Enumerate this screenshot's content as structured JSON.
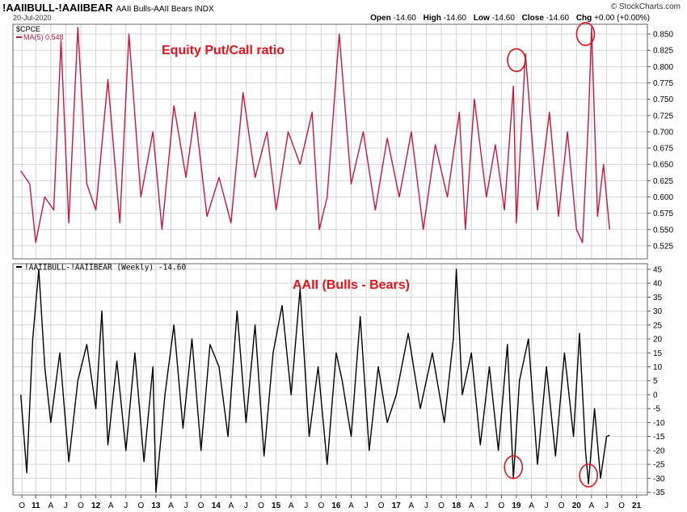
{
  "header": {
    "symbol": "!AAIIBULL-!AAIIBEAR",
    "name": "AAII Bulls-AAII Bears",
    "exchange": "INDX",
    "brand": "© StockCharts.com",
    "date": "20-Jul-2020",
    "quote": {
      "open_label": "Open",
      "open": "-14.60",
      "high_label": "High",
      "high": "-14.60",
      "low_label": "Low",
      "low": "-14.60",
      "close_label": "Close",
      "close": "-14.60",
      "chg_label": "Chg",
      "chg": "+0.00 (+0.00%)"
    }
  },
  "chart_data": [
    {
      "type": "line",
      "title": "Equity Put/Call ratio",
      "legend": {
        "symbol": "$CPCE",
        "ma": "MA(5) 0.548",
        "placement": "top-left"
      },
      "color": "#c8173f",
      "ylim": [
        0.505,
        0.865
      ],
      "yticks": [
        "0.850",
        "0.825",
        "0.800",
        "0.775",
        "0.750",
        "0.725",
        "0.700",
        "0.675",
        "0.650",
        "0.625",
        "0.600",
        "0.575",
        "0.550",
        "0.525"
      ],
      "x": [
        2010.75,
        2010.9,
        2011.0,
        2011.15,
        2011.3,
        2011.42,
        2011.55,
        2011.7,
        2011.85,
        2012.0,
        2012.2,
        2012.4,
        2012.55,
        2012.75,
        2012.95,
        2013.1,
        2013.3,
        2013.5,
        2013.65,
        2013.85,
        2014.05,
        2014.25,
        2014.45,
        2014.65,
        2014.85,
        2015.0,
        2015.2,
        2015.4,
        2015.6,
        2015.72,
        2015.85,
        2016.05,
        2016.25,
        2016.45,
        2016.65,
        2016.85,
        2017.05,
        2017.25,
        2017.45,
        2017.65,
        2017.85,
        2018.05,
        2018.15,
        2018.3,
        2018.5,
        2018.65,
        2018.8,
        2018.95,
        2019.0,
        2019.15,
        2019.35,
        2019.55,
        2019.7,
        2019.85,
        2020.0,
        2020.1,
        2020.2,
        2020.25,
        2020.35,
        2020.45,
        2020.55
      ],
      "values": [
        0.64,
        0.62,
        0.53,
        0.6,
        0.58,
        0.84,
        0.56,
        0.86,
        0.62,
        0.58,
        0.78,
        0.56,
        0.85,
        0.6,
        0.7,
        0.55,
        0.74,
        0.63,
        0.73,
        0.57,
        0.63,
        0.56,
        0.76,
        0.63,
        0.7,
        0.58,
        0.7,
        0.65,
        0.73,
        0.55,
        0.6,
        0.85,
        0.62,
        0.7,
        0.58,
        0.69,
        0.6,
        0.7,
        0.55,
        0.68,
        0.6,
        0.73,
        0.55,
        0.75,
        0.6,
        0.68,
        0.58,
        0.77,
        0.56,
        0.82,
        0.58,
        0.73,
        0.57,
        0.7,
        0.55,
        0.53,
        0.72,
        0.86,
        0.57,
        0.65,
        0.55
      ],
      "annotations": [
        {
          "x": 2019.0,
          "y": 0.81
        },
        {
          "x": 2020.15,
          "y": 0.85
        }
      ]
    },
    {
      "type": "line",
      "title": "AAII (Bulls - Bears)",
      "legend": {
        "label": "!AAIIBULL-!AAIIBEAR (Weekly) -14.60",
        "placement": "top-left"
      },
      "color": "#000000",
      "ylim": [
        -36,
        47
      ],
      "yticks": [
        "45",
        "40",
        "35",
        "30",
        "25",
        "20",
        "15",
        "10",
        "5",
        "0",
        "-5",
        "-10",
        "-15",
        "-20",
        "-25",
        "-30",
        "-35"
      ],
      "x": [
        2010.75,
        2010.85,
        2010.95,
        2011.05,
        2011.15,
        2011.25,
        2011.4,
        2011.55,
        2011.7,
        2011.85,
        2012.0,
        2012.1,
        2012.2,
        2012.35,
        2012.5,
        2012.65,
        2012.8,
        2012.95,
        2013.0,
        2013.15,
        2013.3,
        2013.45,
        2013.6,
        2013.75,
        2013.9,
        2014.05,
        2014.2,
        2014.35,
        2014.5,
        2014.65,
        2014.8,
        2014.95,
        2015.1,
        2015.25,
        2015.4,
        2015.55,
        2015.7,
        2015.85,
        2016.0,
        2016.1,
        2016.25,
        2016.4,
        2016.55,
        2016.7,
        2016.85,
        2017.0,
        2017.2,
        2017.4,
        2017.6,
        2017.8,
        2017.95,
        2018.0,
        2018.1,
        2018.25,
        2018.4,
        2018.55,
        2018.7,
        2018.85,
        2018.95,
        2019.05,
        2019.2,
        2019.35,
        2019.5,
        2019.65,
        2019.8,
        2019.95,
        2020.05,
        2020.15,
        2020.2,
        2020.3,
        2020.4,
        2020.5,
        2020.55
      ],
      "values": [
        0,
        -28,
        20,
        45,
        10,
        -10,
        15,
        -24,
        5,
        18,
        -5,
        30,
        -18,
        12,
        -20,
        15,
        -24,
        10,
        -35,
        0,
        25,
        -12,
        20,
        -20,
        18,
        10,
        -15,
        30,
        -10,
        25,
        -22,
        15,
        32,
        0,
        38,
        -15,
        10,
        -25,
        15,
        5,
        -15,
        28,
        -20,
        10,
        -10,
        0,
        22,
        -5,
        15,
        -10,
        20,
        45,
        0,
        15,
        -18,
        10,
        -20,
        18,
        -30,
        5,
        20,
        -25,
        10,
        -22,
        15,
        -15,
        22,
        -20,
        -32,
        -5,
        -30,
        -15,
        -14.6
      ],
      "annotations": [
        {
          "x": 2018.95,
          "y": -26
        },
        {
          "x": 2020.2,
          "y": -29
        }
      ]
    }
  ],
  "x_axis": {
    "range": [
      2010.62,
      2021.18
    ],
    "ticks": [
      {
        "x": 2010.77,
        "label": "O",
        "major": false
      },
      {
        "x": 2011.0,
        "label": "11",
        "major": true
      },
      {
        "x": 2011.25,
        "label": "A",
        "major": false
      },
      {
        "x": 2011.5,
        "label": "J",
        "major": false
      },
      {
        "x": 2011.75,
        "label": "O",
        "major": false
      },
      {
        "x": 2012.0,
        "label": "12",
        "major": true
      },
      {
        "x": 2012.25,
        "label": "A",
        "major": false
      },
      {
        "x": 2012.5,
        "label": "J",
        "major": false
      },
      {
        "x": 2012.75,
        "label": "O",
        "major": false
      },
      {
        "x": 2013.0,
        "label": "13",
        "major": true
      },
      {
        "x": 2013.25,
        "label": "A",
        "major": false
      },
      {
        "x": 2013.5,
        "label": "J",
        "major": false
      },
      {
        "x": 2013.75,
        "label": "O",
        "major": false
      },
      {
        "x": 2014.0,
        "label": "14",
        "major": true
      },
      {
        "x": 2014.25,
        "label": "A",
        "major": false
      },
      {
        "x": 2014.5,
        "label": "J",
        "major": false
      },
      {
        "x": 2014.75,
        "label": "O",
        "major": false
      },
      {
        "x": 2015.0,
        "label": "15",
        "major": true
      },
      {
        "x": 2015.25,
        "label": "A",
        "major": false
      },
      {
        "x": 2015.5,
        "label": "J",
        "major": false
      },
      {
        "x": 2015.75,
        "label": "O",
        "major": false
      },
      {
        "x": 2016.0,
        "label": "16",
        "major": true
      },
      {
        "x": 2016.25,
        "label": "A",
        "major": false
      },
      {
        "x": 2016.5,
        "label": "J",
        "major": false
      },
      {
        "x": 2016.75,
        "label": "O",
        "major": false
      },
      {
        "x": 2017.0,
        "label": "17",
        "major": true
      },
      {
        "x": 2017.25,
        "label": "A",
        "major": false
      },
      {
        "x": 2017.5,
        "label": "J",
        "major": false
      },
      {
        "x": 2017.75,
        "label": "O",
        "major": false
      },
      {
        "x": 2018.0,
        "label": "18",
        "major": true
      },
      {
        "x": 2018.25,
        "label": "A",
        "major": false
      },
      {
        "x": 2018.5,
        "label": "J",
        "major": false
      },
      {
        "x": 2018.75,
        "label": "O",
        "major": false
      },
      {
        "x": 2019.0,
        "label": "19",
        "major": true
      },
      {
        "x": 2019.25,
        "label": "A",
        "major": false
      },
      {
        "x": 2019.5,
        "label": "J",
        "major": false
      },
      {
        "x": 2019.75,
        "label": "O",
        "major": false
      },
      {
        "x": 2020.0,
        "label": "20",
        "major": true
      },
      {
        "x": 2020.25,
        "label": "A",
        "major": false
      },
      {
        "x": 2020.5,
        "label": "J",
        "major": false
      },
      {
        "x": 2020.75,
        "label": "O",
        "major": false
      },
      {
        "x": 2021.0,
        "label": "21",
        "major": true
      }
    ]
  },
  "colors": {
    "title_red": "#e3131b",
    "grid": "#d4d4d4",
    "annotation": "#e3131b"
  }
}
